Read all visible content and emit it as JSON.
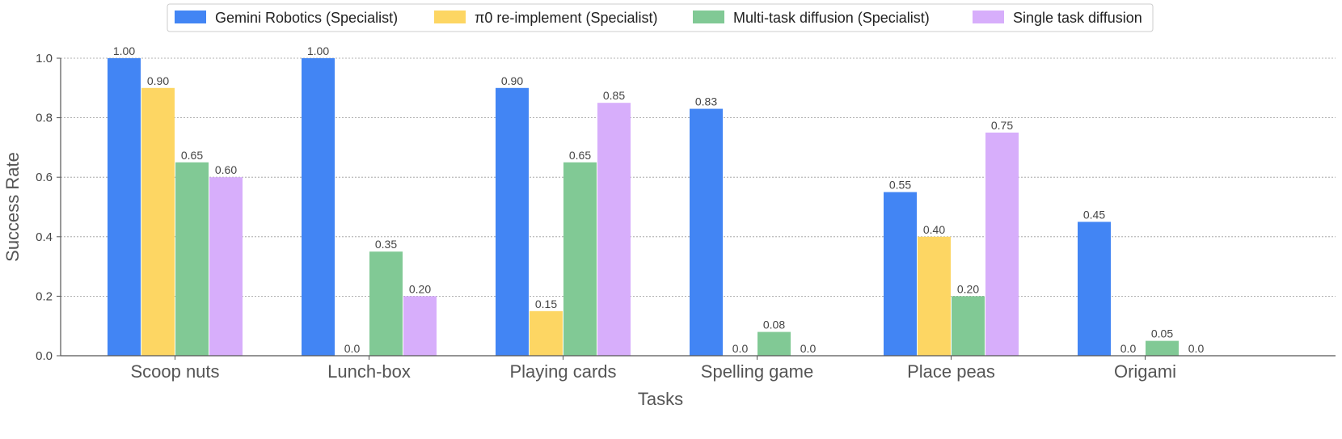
{
  "chart_data": {
    "type": "bar",
    "title": "",
    "xlabel": "Tasks",
    "ylabel": "Success Rate",
    "ylim": [
      0,
      1.0
    ],
    "yticks": [
      "0.0",
      "0.2",
      "0.4",
      "0.6",
      "0.8",
      "1.0"
    ],
    "grid": "horizontal-dotted",
    "legend_position": "top-center",
    "categories": [
      "Scoop nuts",
      "Lunch-box",
      "Playing cards",
      "Spelling game",
      "Place peas",
      "Origami"
    ],
    "series": [
      {
        "name": "Gemini Robotics (Specialist)",
        "color": "#4285F4",
        "values": [
          1.0,
          1.0,
          0.9,
          0.83,
          0.55,
          0.45
        ],
        "labels": [
          "1.00",
          "1.00",
          "0.90",
          "0.83",
          "0.55",
          "0.45"
        ]
      },
      {
        "name": "π0 re-implement (Specialist)",
        "color": "#FDD663",
        "values": [
          0.9,
          0.0,
          0.15,
          0.0,
          0.4,
          0.0
        ],
        "labels": [
          "0.90",
          "0.0",
          "0.15",
          "0.0",
          "0.40",
          "0.0"
        ]
      },
      {
        "name": "Multi-task diffusion (Specialist)",
        "color": "#81C995",
        "values": [
          0.65,
          0.35,
          0.65,
          0.08,
          0.2,
          0.05
        ],
        "labels": [
          "0.65",
          "0.35",
          "0.65",
          "0.08",
          "0.20",
          "0.05"
        ]
      },
      {
        "name": "Single task diffusion",
        "color": "#D7AEFB",
        "values": [
          0.6,
          0.2,
          0.85,
          0.0,
          0.75,
          0.0
        ],
        "labels": [
          "0.60",
          "0.20",
          "0.85",
          "0.0",
          "0.75",
          "0.0"
        ]
      }
    ]
  }
}
